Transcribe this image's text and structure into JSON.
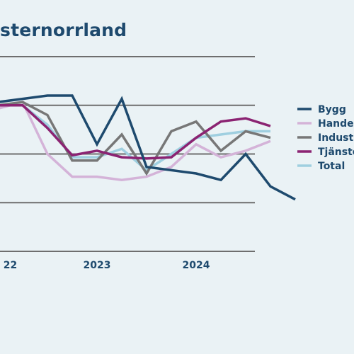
{
  "chart_data": {
    "type": "line",
    "title": "sternorrland",
    "xlabel": "",
    "ylabel": "",
    "ylim": [
      -10,
      20
    ],
    "grid": true,
    "legend_position": "right",
    "x_tick_labels": [
      {
        "label": "22",
        "pos": 0.5
      },
      {
        "label": "2023",
        "pos": 4
      },
      {
        "label": "2024",
        "pos": 8
      }
    ],
    "series": [
      {
        "name": "Bygg",
        "color": "#1e4a6e",
        "values": [
          13,
          13.5,
          14,
          14,
          6.5,
          13.5,
          3,
          2.5,
          2,
          1,
          5,
          0,
          -2
        ]
      },
      {
        "name": "Handel",
        "color": "#d4b3d8",
        "values": [
          12,
          13,
          5,
          1.5,
          1.5,
          1,
          1.5,
          3,
          6.5,
          4.5,
          5.5,
          7
        ]
      },
      {
        "name": "Industri",
        "color": "#777777",
        "values": [
          12.5,
          13,
          11,
          4,
          4,
          8,
          2,
          8.5,
          10,
          5.5,
          8.5,
          7.5
        ]
      },
      {
        "name": "Tjänster",
        "color": "#8b2372",
        "values": [
          12.5,
          12.5,
          9,
          4.8,
          5.5,
          4.5,
          4.3,
          4.5,
          7.5,
          10,
          10.5,
          9.3
        ]
      },
      {
        "name": "Total",
        "color": "#9fcfe0",
        "values": [
          12.5,
          12.5,
          9.5,
          4.5,
          4.5,
          5.8,
          2.5,
          5,
          7.5,
          8,
          8.5,
          8.5
        ]
      }
    ]
  }
}
